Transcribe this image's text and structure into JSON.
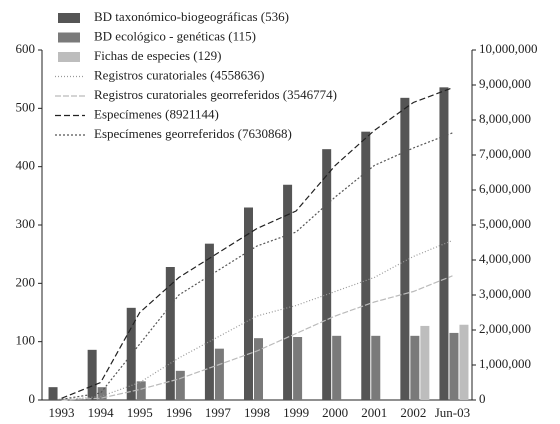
{
  "chart_data": {
    "type": "combo",
    "categories": [
      "1993",
      "1994",
      "1995",
      "1996",
      "1997",
      "1998",
      "1999",
      "2000",
      "2001",
      "2002",
      "Jun-03"
    ],
    "ylim": [
      0,
      600
    ],
    "yticks": [
      0,
      100,
      200,
      300,
      400,
      500,
      600
    ],
    "y2lim": [
      0,
      10000000
    ],
    "y2ticks": [
      0,
      {
        "value": 1000000,
        "label": "1,000,000"
      },
      {
        "value": 2000000,
        "label": "2,000,000"
      },
      {
        "value": 3000000,
        "label": "3,000,000"
      },
      {
        "value": 4000000,
        "label": "4,000,000"
      },
      {
        "value": 5000000,
        "label": "5,000,000"
      },
      {
        "value": 6000000,
        "label": "6,000,000"
      },
      {
        "value": 7000000,
        "label": "7,000,000"
      },
      {
        "value": 8000000,
        "label": "8,000,000"
      },
      {
        "value": 9000000,
        "label": "9,000,000"
      },
      {
        "value": 10000000,
        "label": "10,000,000"
      }
    ],
    "series": [
      {
        "name": "BD taxonómico-biogeográficas (536)",
        "type": "bar",
        "color": "#555555",
        "values": [
          22,
          86,
          158,
          228,
          268,
          330,
          369,
          430,
          460,
          518,
          536
        ]
      },
      {
        "name": "BD ecológico - genéticas (115)",
        "type": "bar",
        "color": "#7a7a7a",
        "values": [
          2,
          22,
          32,
          50,
          88,
          106,
          108,
          110,
          110,
          110,
          115
        ]
      },
      {
        "name": "Fichas de especies (129)",
        "type": "bar",
        "color": "#bdbdbd",
        "values": [
          0,
          0,
          0,
          0,
          0,
          0,
          0,
          0,
          0,
          127,
          129
        ]
      },
      {
        "name": "Registros curatoriales (4558636)",
        "type": "line",
        "axis": "y2",
        "color": "#999999",
        "dash": "1,2",
        "values": [
          0,
          100000,
          500000,
          1200000,
          1800000,
          2400000,
          2700000,
          3100000,
          3500000,
          4100000,
          4558636
        ]
      },
      {
        "name": "Registros curatoriales georreferidos (3546774)",
        "type": "line",
        "axis": "y2",
        "color": "#bbbbbb",
        "dash": "6,2",
        "values": [
          0,
          50000,
          300000,
          600000,
          1000000,
          1400000,
          1900000,
          2400000,
          2800000,
          3100000,
          3546774
        ]
      },
      {
        "name": "Especímenes (8921144)",
        "type": "line",
        "axis": "y2",
        "color": "#222222",
        "dash": "6,3",
        "values": [
          50000,
          500000,
          2500000,
          3500000,
          4200000,
          4900000,
          5400000,
          6700000,
          7700000,
          8500000,
          8921144
        ]
      },
      {
        "name": "Especímenes georreferidos (7630868)",
        "type": "line",
        "axis": "y2",
        "color": "#555555",
        "dash": "2,2",
        "values": [
          20000,
          200000,
          1600000,
          3000000,
          3700000,
          4400000,
          4800000,
          5800000,
          6700000,
          7200000,
          7630868
        ]
      }
    ]
  }
}
